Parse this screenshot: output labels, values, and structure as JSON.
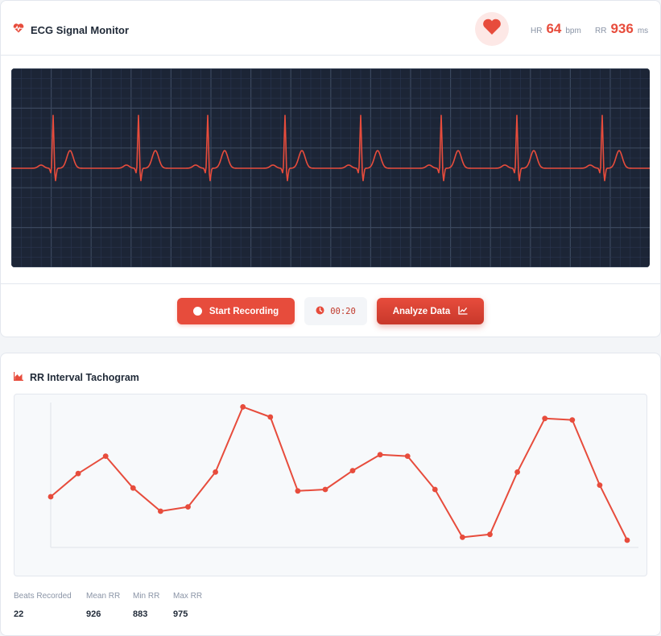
{
  "header": {
    "title": "ECG Signal Monitor",
    "heart_rate": {
      "label": "HR",
      "value": "64",
      "unit": "bpm"
    },
    "rr_interval": {
      "label": "RR",
      "value": "936",
      "unit": "ms"
    }
  },
  "icons": {
    "brand": "heart-pulse-icon",
    "heart": "heart-icon",
    "record": "record-dot-icon",
    "timer": "clock-icon",
    "analyze": "line-chart-icon",
    "tachogram": "area-chart-icon"
  },
  "colors": {
    "accent": "#e74c3c",
    "accent_dark": "#c8382b",
    "ecg_background": "#1c2536",
    "ecg_trace": "#e74c3c"
  },
  "controls": {
    "record_label": "Start Recording",
    "timer": "00:20",
    "analyze_label": "Analyze Data"
  },
  "ecg": {
    "beat_times_ms": [
      520,
      1580,
      2440,
      3400,
      4340,
      5340,
      6280,
      7340
    ]
  },
  "tachogram": {
    "title": "RR Interval Tachogram",
    "stats": [
      {
        "label": "Beats Recorded",
        "value": "22"
      },
      {
        "label": "Mean RR",
        "value": "926"
      },
      {
        "label": "Min RR",
        "value": "883"
      },
      {
        "label": "Max RR",
        "value": "975"
      }
    ]
  },
  "chart_data": {
    "type": "line",
    "title": "RR Interval Tachogram",
    "xlabel": "",
    "ylabel": "",
    "x": [
      1,
      2,
      3,
      4,
      5,
      6,
      7,
      8,
      9,
      10,
      11,
      12,
      13,
      14,
      15,
      16,
      17,
      18,
      19,
      20,
      21,
      22
    ],
    "series": [
      {
        "values": [
          913,
          929,
          941,
          919,
          903,
          906,
          930,
          975,
          968,
          917,
          918,
          931,
          942,
          941,
          918,
          885,
          887,
          930,
          967,
          966,
          921,
          883
        ]
      }
    ],
    "ylim": [
      878,
      978
    ],
    "grid": false,
    "legend": "none"
  }
}
